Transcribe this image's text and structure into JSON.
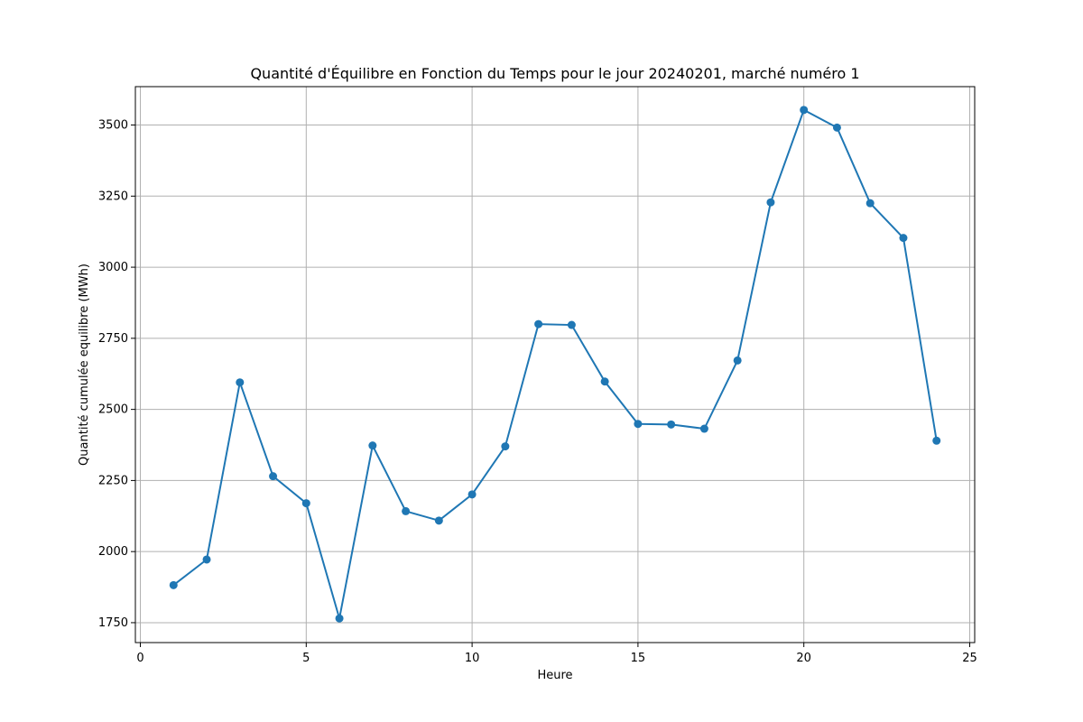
{
  "chart_data": {
    "type": "line",
    "title": "Quantité d'Équilibre en Fonction du Temps pour le jour 20240201, marché numéro 1",
    "xlabel": "Heure",
    "ylabel": "Quantité cumulée equilibre (MWh)",
    "xlim": [
      -0.15,
      25.15
    ],
    "ylim": [
      1680,
      3635
    ],
    "x_ticks": [
      0,
      5,
      10,
      15,
      20,
      25
    ],
    "y_ticks": [
      1750,
      2000,
      2250,
      2500,
      2750,
      3000,
      3250,
      3500
    ],
    "x_tick_labels": [
      "0",
      "5",
      "10",
      "15",
      "20",
      "25"
    ],
    "y_tick_labels": [
      "1750",
      "2000",
      "2250",
      "2500",
      "2750",
      "3000",
      "3250",
      "3500"
    ],
    "grid": true,
    "series": [
      {
        "color": "#1f77b4",
        "marker": "circle",
        "x": [
          1,
          2,
          3,
          4,
          5,
          6,
          7,
          8,
          9,
          10,
          11,
          12,
          13,
          14,
          15,
          16,
          17,
          18,
          19,
          20,
          21,
          22,
          23,
          24
        ],
        "y": [
          1882,
          1972,
          2595,
          2265,
          2170,
          1765,
          2373,
          2142,
          2109,
          2201,
          2370,
          2800,
          2797,
          2598,
          2449,
          2447,
          2432,
          2672,
          3228,
          3553,
          3491,
          3225,
          3103,
          2390
        ]
      }
    ]
  }
}
